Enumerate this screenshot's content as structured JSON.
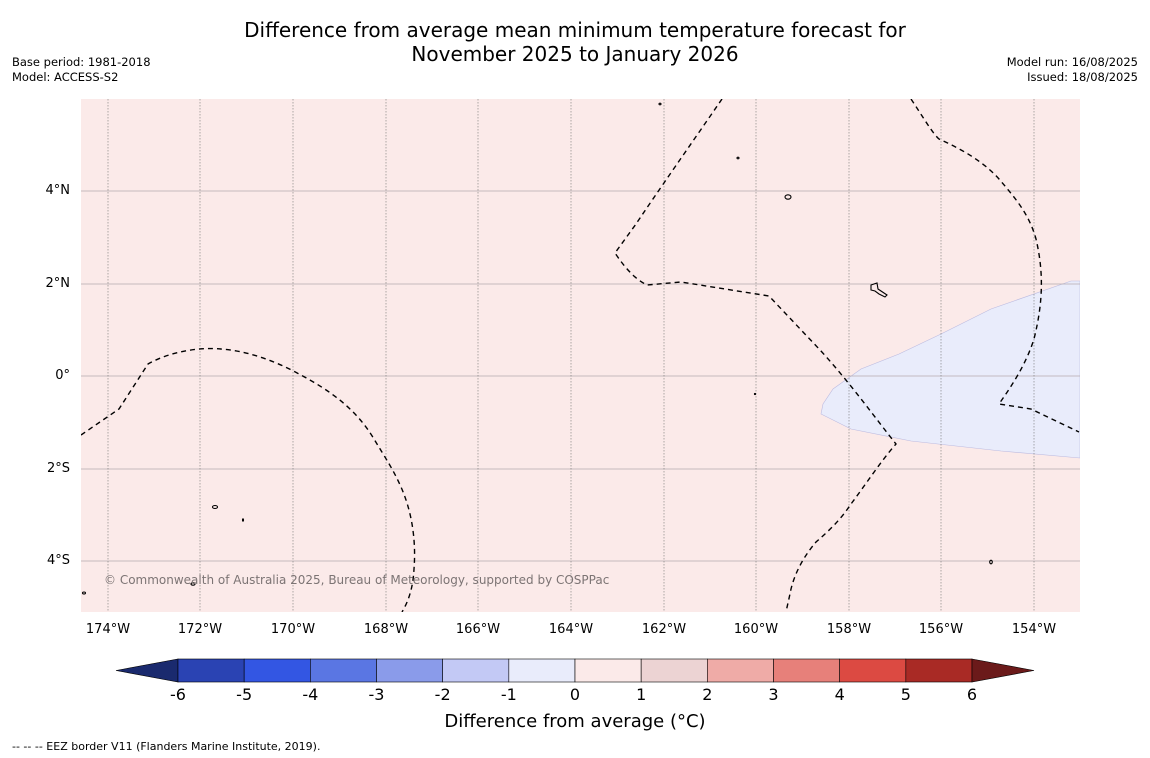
{
  "title": {
    "line1": "Difference from average mean minimum temperature forecast for",
    "line2": "November 2025 to January 2026"
  },
  "meta_left": {
    "base_period": "Base period: 1981-2018",
    "model": "Model: ACCESS-S2"
  },
  "meta_right": {
    "model_run": "Model run: 16/08/2025",
    "issued": "Issued: 18/08/2025"
  },
  "map": {
    "lat_labels": [
      "4°N",
      "2°N",
      "0°",
      "2°S",
      "4°S"
    ],
    "lon_labels": [
      "174°W",
      "172°W",
      "170°W",
      "168°W",
      "166°W",
      "164°W",
      "162°W",
      "160°W",
      "158°W",
      "156°W",
      "154°W"
    ],
    "copyright": "© Commonwealth of Australia 2025, Bureau of Meteorology, supported by COSPPac",
    "colors": {
      "background_anomaly_0_1": "#fbeae9",
      "anomaly_minus1_0": "#e9ecfb",
      "eez_border": "#000000"
    }
  },
  "colorbar": {
    "ticks": [
      "-6",
      "-5",
      "-4",
      "-3",
      "-2",
      "-1",
      "0",
      "1",
      "2",
      "3",
      "4",
      "5",
      "6"
    ],
    "colors": [
      "#1a2a6e",
      "#2a43b3",
      "#3356e3",
      "#5a76e3",
      "#8a9bea",
      "#c3c9f5",
      "#e9ecfb",
      "#fbeae9",
      "#ecd3d3",
      "#efaba7",
      "#e7807a",
      "#dc4a42",
      "#a92a25",
      "#6b1a1a"
    ],
    "label": "Difference from average (°C)"
  },
  "footnote": "--  --  -- EEZ border V11 (Flanders Marine Institute, 2019)."
}
